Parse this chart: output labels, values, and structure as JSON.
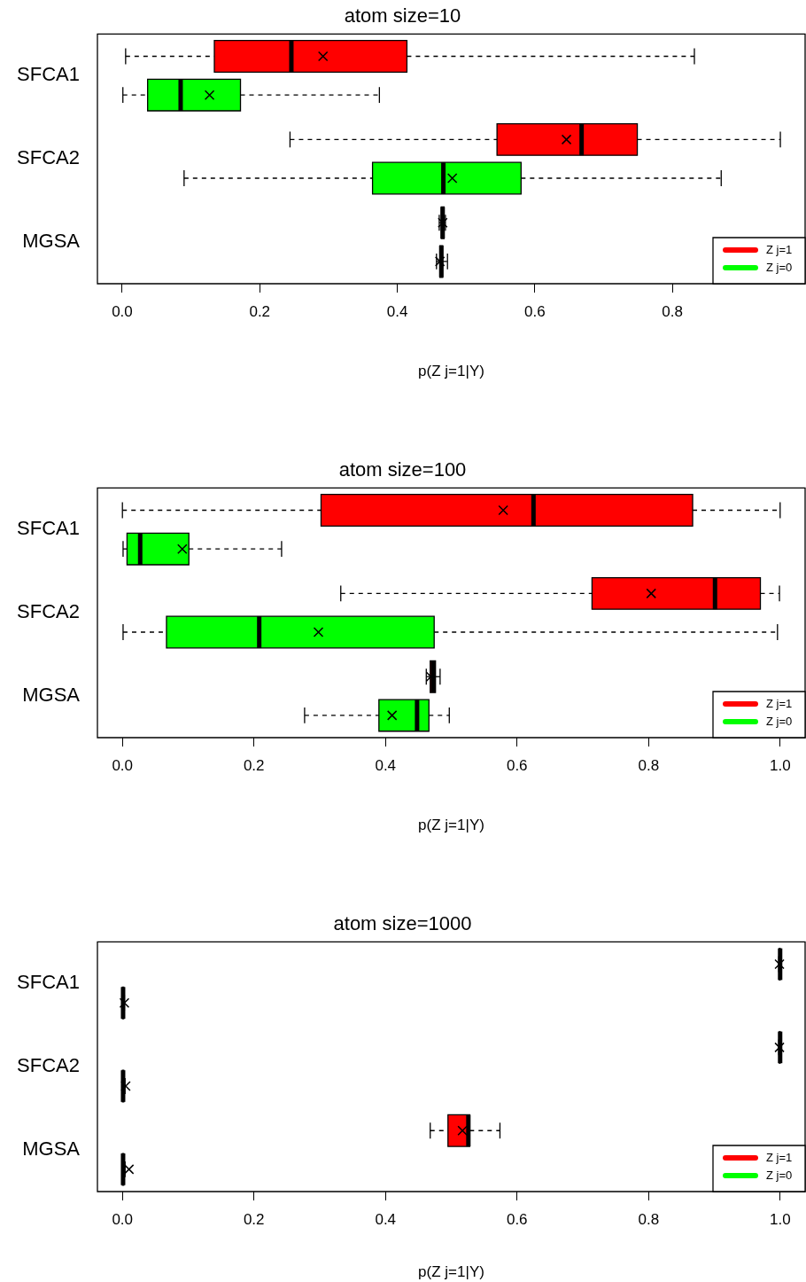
{
  "chart_data": [
    {
      "type": "box",
      "orientation": "horizontal",
      "title": "atom size=10",
      "xlabel": "p(Z j=1|Y)",
      "categories": [
        "SFCA1",
        "SFCA2",
        "MGSA"
      ],
      "xlim": [
        -0.036,
        0.993
      ],
      "xticks": [
        {
          "value": 0,
          "label": "0.0"
        },
        {
          "value": 0.2,
          "label": "0.2"
        },
        {
          "value": 0.4,
          "label": "0.4"
        },
        {
          "value": 0.6,
          "label": "0.6"
        },
        {
          "value": 0.8,
          "label": "0.8"
        }
      ],
      "legend": "bottom right",
      "grid": false,
      "series": [
        {
          "name": "Z j=1",
          "color": "#ff0000",
          "boxes": [
            {
              "low": 0.005,
              "q1": 0.134,
              "median": 0.246,
              "q3": 0.414,
              "high": 0.832,
              "mean": 0.292
            },
            {
              "low": 0.244,
              "q1": 0.545,
              "median": 0.668,
              "q3": 0.749,
              "high": 0.957,
              "mean": 0.646
            },
            {
              "low": 0.461,
              "q1": 0.464,
              "median": 0.466,
              "q3": 0.468,
              "high": 0.47,
              "mean": 0.466
            }
          ]
        },
        {
          "name": "Z j=0",
          "color": "#00ff00",
          "boxes": [
            {
              "low": 0.001,
              "q1": 0.037,
              "median": 0.085,
              "q3": 0.172,
              "high": 0.374,
              "mean": 0.127
            },
            {
              "low": 0.09,
              "q1": 0.364,
              "median": 0.467,
              "q3": 0.58,
              "high": 0.871,
              "mean": 0.48
            },
            {
              "low": 0.457,
              "q1": 0.462,
              "median": 0.464,
              "q3": 0.466,
              "high": 0.473,
              "mean": 0.462
            }
          ]
        }
      ]
    },
    {
      "type": "box",
      "orientation": "horizontal",
      "title": "atom size=100",
      "xlabel": "p(Z j=1|Y)",
      "categories": [
        "SFCA1",
        "SFCA2",
        "MGSA"
      ],
      "xlim": [
        -0.038,
        1.038
      ],
      "xticks": [
        {
          "value": 0,
          "label": "0.0"
        },
        {
          "value": 0.2,
          "label": "0.2"
        },
        {
          "value": 0.4,
          "label": "0.4"
        },
        {
          "value": 0.6,
          "label": "0.6"
        },
        {
          "value": 0.8,
          "label": "0.8"
        },
        {
          "value": 1,
          "label": "1.0"
        }
      ],
      "legend": "bottom right",
      "grid": false,
      "series": [
        {
          "name": "Z j=1",
          "color": "#ff0000",
          "boxes": [
            {
              "low": 0,
              "q1": 0.302,
              "median": 0.625,
              "q3": 0.867,
              "high": 1,
              "mean": 0.579
            },
            {
              "low": 0.332,
              "q1": 0.714,
              "median": 0.901,
              "q3": 0.97,
              "high": 0.999,
              "mean": 0.804
            },
            {
              "low": 0.462,
              "q1": 0.468,
              "median": 0.472,
              "q3": 0.476,
              "high": 0.483,
              "mean": 0.469
            }
          ]
        },
        {
          "name": "Z j=0",
          "color": "#00ff00",
          "boxes": [
            {
              "low": 0.001,
              "q1": 0.007,
              "median": 0.027,
              "q3": 0.101,
              "high": 0.242,
              "mean": 0.091
            },
            {
              "low": 0.001,
              "q1": 0.067,
              "median": 0.208,
              "q3": 0.474,
              "high": 0.996,
              "mean": 0.298
            },
            {
              "low": 0.277,
              "q1": 0.39,
              "median": 0.448,
              "q3": 0.466,
              "high": 0.497,
              "mean": 0.41
            }
          ]
        }
      ]
    },
    {
      "type": "box",
      "orientation": "horizontal",
      "title": "atom size=1000",
      "xlabel": "p(Z j=1|Y)",
      "categories": [
        "SFCA1",
        "SFCA2",
        "MGSA"
      ],
      "xlim": [
        -0.038,
        1.038
      ],
      "xticks": [
        {
          "value": 0,
          "label": "0.0"
        },
        {
          "value": 0.2,
          "label": "0.2"
        },
        {
          "value": 0.4,
          "label": "0.4"
        },
        {
          "value": 0.6,
          "label": "0.6"
        },
        {
          "value": 0.8,
          "label": "0.8"
        },
        {
          "value": 1,
          "label": "1.0"
        }
      ],
      "legend": "bottom right",
      "grid": false,
      "series": [
        {
          "name": "Z j=1",
          "color": "#ff0000",
          "boxes": [
            {
              "low": 0.998,
              "q1": 0.999,
              "median": 1,
              "q3": 1,
              "high": 1,
              "mean": 0.999
            },
            {
              "low": 0.998,
              "q1": 0.999,
              "median": 1,
              "q3": 1,
              "high": 1,
              "mean": 0.999
            },
            {
              "low": 0.468,
              "q1": 0.495,
              "median": 0.526,
              "q3": 0.528,
              "high": 0.574,
              "mean": 0.517
            }
          ]
        },
        {
          "name": "Z j=0",
          "color": "#00ff00",
          "boxes": [
            {
              "low": 0,
              "q1": 0,
              "median": 0.001,
              "q3": 0.002,
              "high": 0.003,
              "mean": 0.003
            },
            {
              "low": 0,
              "q1": 0,
              "median": 0.001,
              "q3": 0.002,
              "high": 0.004,
              "mean": 0.005
            },
            {
              "low": 0,
              "q1": 0,
              "median": 0.001,
              "q3": 0.002,
              "high": 0.004,
              "mean": 0.01
            }
          ]
        }
      ]
    }
  ]
}
